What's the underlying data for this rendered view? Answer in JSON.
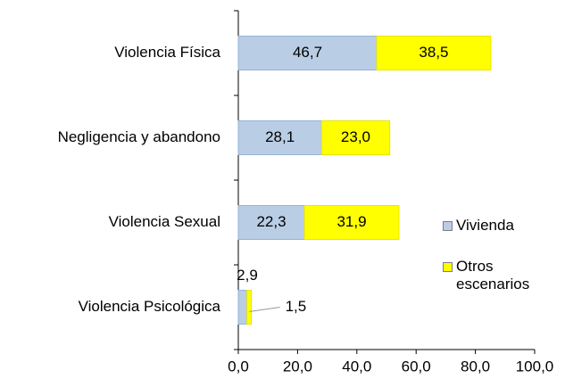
{
  "chart_data": {
    "type": "stacked-bar-horizontal",
    "categories": [
      "Violencia Física",
      "Negligencia y abandono",
      "Violencia Sexual",
      "Violencia Psicológica"
    ],
    "series": [
      {
        "name": "Vivienda",
        "color": "#b9cde5",
        "values": [
          46.7,
          28.1,
          22.3,
          2.9
        ],
        "value_labels": [
          "46,7",
          "28,1",
          "22,3",
          "2,9"
        ]
      },
      {
        "name": "Otros escenarios",
        "color": "#ffff00",
        "values": [
          38.5,
          23.0,
          31.9,
          1.5
        ],
        "value_labels": [
          "38,5",
          "23,0",
          "31,9",
          "1,5"
        ]
      }
    ],
    "xlim": [
      0,
      100
    ],
    "xticks": [
      {
        "value": 0,
        "label": "0,0"
      },
      {
        "value": 20,
        "label": "20,0"
      },
      {
        "value": 40,
        "label": "40,0"
      },
      {
        "value": 60,
        "label": "60,0"
      },
      {
        "value": 80,
        "label": "80,0"
      },
      {
        "value": 100,
        "label": "100,0"
      }
    ],
    "legend": "right"
  }
}
